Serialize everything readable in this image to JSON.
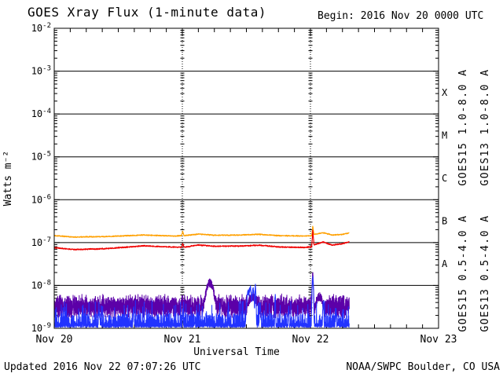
{
  "title": "GOES Xray Flux (1-minute data)",
  "begin_label": "Begin:  2016 Nov 20 0000 UTC",
  "footer": {
    "updated": "Updated 2016 Nov 22 07:07:26 UTC",
    "source": "NOAA/SWPC Boulder, CO USA"
  },
  "chart_data": {
    "type": "line",
    "title": "GOES Xray Flux (1-minute data)",
    "xlabel": "Universal Time",
    "ylabel": "Watts m⁻²",
    "y_scale": "log",
    "ylim": [
      1e-09,
      0.01
    ],
    "y_tick_exponents": [
      -2,
      -3,
      -4,
      -5,
      -6,
      -7,
      -8,
      -9
    ],
    "y_gridline_exponents": [
      -3,
      -4,
      -5,
      -6,
      -7,
      -8
    ],
    "x_range_days": [
      0,
      3
    ],
    "x_ticks": [
      "Nov 20",
      "Nov 21",
      "Nov 22",
      "Nov 23"
    ],
    "x_minor_tick_hours": 3,
    "day_gridlines": [
      1,
      2
    ],
    "flare_class_labels": [
      "X",
      "M",
      "C",
      "B",
      "A"
    ],
    "legend_position": "right-rotated",
    "legend": [
      {
        "text": "GOES15 1.0-8.0 A",
        "color": "#f00000",
        "half": "top",
        "column": "inner"
      },
      {
        "text": "GOES13 1.0-8.0 A",
        "color": "#ffa000",
        "half": "top",
        "column": "outer"
      },
      {
        "text": "GOES15 0.5-4.0 A",
        "color": "#2233ff",
        "half": "bottom",
        "column": "inner"
      },
      {
        "text": "GOES13 0.5-4.0 A",
        "color": "#5c00a8",
        "half": "bottom",
        "column": "outer"
      }
    ],
    "series": [
      {
        "name": "GOES13 1.0-8.0 A",
        "color": "#ffa000",
        "kind": "smooth",
        "step_min": 2,
        "end_day": 2.303,
        "noise_dex": 0.014,
        "keyframes": [
          [
            0,
            1.45e-07
          ],
          [
            0.15,
            1.35e-07
          ],
          [
            0.4,
            1.38e-07
          ],
          [
            0.7,
            1.5e-07
          ],
          [
            0.95,
            1.42e-07
          ],
          [
            0.995,
            1.45e-07
          ],
          [
            1.003,
            1.85e-07
          ],
          [
            1.012,
            1.45e-07
          ],
          [
            1.13,
            1.58e-07
          ],
          [
            1.25,
            1.48e-07
          ],
          [
            1.45,
            1.5e-07
          ],
          [
            1.6,
            1.56e-07
          ],
          [
            1.75,
            1.45e-07
          ],
          [
            1.95,
            1.42e-07
          ],
          [
            2.01,
            1.45e-07
          ],
          [
            2.018,
            2.4e-07
          ],
          [
            2.028,
            1.55e-07
          ],
          [
            2.1,
            1.7e-07
          ],
          [
            2.17,
            1.5e-07
          ],
          [
            2.25,
            1.55e-07
          ],
          [
            2.303,
            1.68e-07
          ]
        ]
      },
      {
        "name": "GOES15 1.0-8.0 A",
        "color": "#f00000",
        "kind": "smooth",
        "step_min": 2,
        "end_day": 2.303,
        "noise_dex": 0.016,
        "keyframes": [
          [
            0,
            7.6e-08
          ],
          [
            0.15,
            6.9e-08
          ],
          [
            0.4,
            7.2e-08
          ],
          [
            0.7,
            8.4e-08
          ],
          [
            0.95,
            7.8e-08
          ],
          [
            0.995,
            7.8e-08
          ],
          [
            1.003,
            9.6e-08
          ],
          [
            1.012,
            7.8e-08
          ],
          [
            1.13,
            8.8e-08
          ],
          [
            1.25,
            8.2e-08
          ],
          [
            1.45,
            8.3e-08
          ],
          [
            1.6,
            8.7e-08
          ],
          [
            1.75,
            7.9e-08
          ],
          [
            1.95,
            7.7e-08
          ],
          [
            2.01,
            8e-08
          ],
          [
            2.018,
            1.9e-07
          ],
          [
            2.028,
            8.8e-08
          ],
          [
            2.1,
            1.03e-07
          ],
          [
            2.17,
            8.7e-08
          ],
          [
            2.25,
            9.4e-08
          ],
          [
            2.303,
            1.05e-07
          ]
        ]
      },
      {
        "name": "GOES13 0.5-4.0 A",
        "color": "#5c00a8",
        "kind": "noisy",
        "step_min": 1,
        "end_day": 2.303,
        "base": 3.2e-09,
        "noise_dex": 0.3,
        "events": [
          [
            1.215,
            1.15e-08,
            0.03
          ],
          [
            1.55,
            5.5e-09,
            0.04
          ],
          [
            2.018,
            1.7e-08,
            0.005
          ],
          [
            2.07,
            5.5e-09,
            0.03
          ]
        ]
      },
      {
        "name": "GOES15 0.5-4.0 A",
        "color": "#2233ff",
        "kind": "spiky",
        "step_min": 1,
        "end_day": 2.303,
        "base": 1.05e-09,
        "events": [
          [
            0.35,
            2.5e-09,
            0.006
          ],
          [
            0.62,
            3e-09,
            0.005
          ],
          [
            1.003,
            2.5e-09,
            0.004
          ],
          [
            1.515,
            7e-09,
            0.012
          ],
          [
            1.53,
            9e-09,
            0.01
          ],
          [
            1.552,
            8e-09,
            0.008
          ],
          [
            1.571,
            1e-08,
            0.004
          ],
          [
            1.607,
            3.5e-09,
            0.006
          ],
          [
            1.725,
            6e-09,
            0.003
          ],
          [
            1.83,
            3e-09,
            0.004
          ],
          [
            2.018,
            1.5e-08,
            0.005
          ],
          [
            2.1,
            4e-09,
            0.005
          ],
          [
            2.2,
            2.5e-09,
            0.004
          ]
        ]
      }
    ]
  }
}
